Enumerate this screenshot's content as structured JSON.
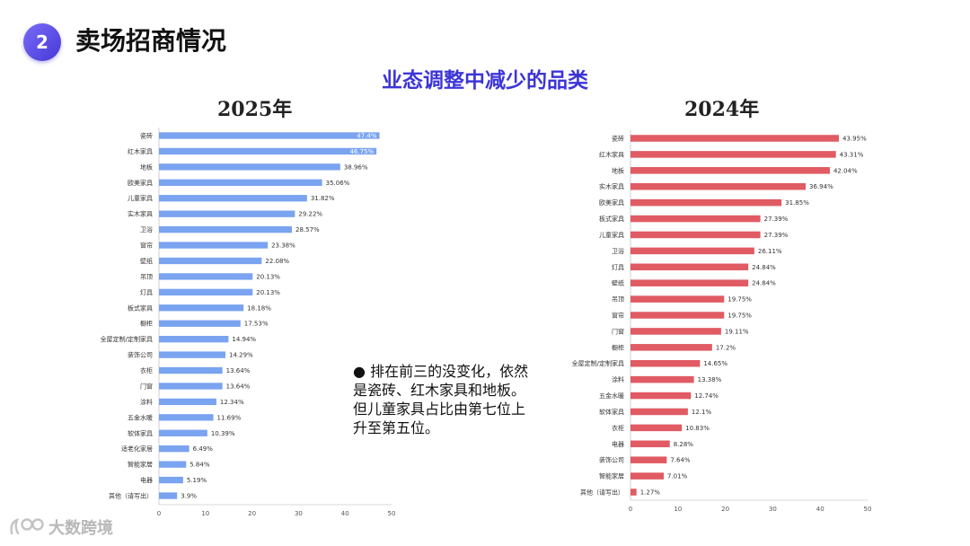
{
  "header": {
    "section_number": "2",
    "title": "卖场招商情况",
    "subtitle": "业态调整中减少的品类"
  },
  "note": {
    "bullet": "●",
    "text": "排在前三的没变化，依然是瓷砖、红木家具和地板。但儿童家具占比由第七位上升至第五位。"
  },
  "logo": {
    "text": "大数跨境",
    "icon": "logo-icon"
  },
  "colors": {
    "left_bar": "#7aa3f0",
    "right_bar": "#e05b63",
    "subtitle": "#3d35d6"
  },
  "chart_data": [
    {
      "type": "bar",
      "orientation": "horizontal",
      "title": "2025年",
      "categories": [
        "瓷砖",
        "红木家具",
        "地板",
        "欧美家具",
        "儿童家具",
        "实木家具",
        "卫浴",
        "窗帘",
        "壁纸",
        "吊顶",
        "灯具",
        "板式家具",
        "橱柜",
        "全屋定制/定制家具",
        "装饰公司",
        "衣柜",
        "门窗",
        "涂料",
        "五金水暖",
        "软体家具",
        "适老化家居",
        "智能家居",
        "电器",
        "其他（请写出）"
      ],
      "values": [
        47.4,
        46.75,
        38.96,
        35.06,
        31.82,
        29.22,
        28.57,
        23.38,
        22.08,
        20.13,
        20.13,
        18.18,
        17.53,
        14.94,
        14.29,
        13.64,
        13.64,
        12.34,
        11.69,
        10.39,
        6.49,
        5.84,
        5.19,
        3.9
      ],
      "labels": [
        "47.4%",
        "46.75%",
        "38.96%",
        "35.06%",
        "31.82%",
        "29.22%",
        "28.57%",
        "23.38%",
        "22.08%",
        "20.13%",
        "20.13%",
        "18.18%",
        "17.53%",
        "14.94%",
        "14.29%",
        "13.64%",
        "13.64%",
        "12.34%",
        "11.69%",
        "10.39%",
        "6.49%",
        "5.84%",
        "5.19%",
        "3.9%"
      ],
      "xlim": [
        0,
        50
      ],
      "xticks": [
        "0",
        "10",
        "20",
        "30",
        "40",
        "50"
      ]
    },
    {
      "type": "bar",
      "orientation": "horizontal",
      "title": "2024年",
      "categories": [
        "瓷砖",
        "红木家具",
        "地板",
        "实木家具",
        "欧美家具",
        "板式家具",
        "儿童家具",
        "卫浴",
        "灯具",
        "壁纸",
        "吊顶",
        "窗帘",
        "门窗",
        "橱柜",
        "全屋定制/定制家具",
        "涂料",
        "五金水暖",
        "软体家具",
        "衣柜",
        "电器",
        "装饰公司",
        "智能家居",
        "其他（请写出）"
      ],
      "values": [
        43.95,
        43.31,
        42.04,
        36.94,
        31.85,
        27.39,
        27.39,
        26.11,
        24.84,
        24.84,
        19.75,
        19.75,
        19.11,
        17.2,
        14.65,
        13.38,
        12.74,
        12.1,
        10.83,
        8.28,
        7.64,
        7.01,
        1.27
      ],
      "labels": [
        "43.95%",
        "43.31%",
        "42.04%",
        "36.94%",
        "31.85%",
        "27.39%",
        "27.39%",
        "26.11%",
        "24.84%",
        "24.84%",
        "19.75%",
        "19.75%",
        "19.11%",
        "17.2%",
        "14.65%",
        "13.38%",
        "12.74%",
        "12.1%",
        "10.83%",
        "8.28%",
        "7.64%",
        "7.01%",
        "1.27%"
      ],
      "xlim": [
        0,
        50
      ],
      "xticks": [
        "0",
        "10",
        "20",
        "30",
        "40",
        "50"
      ]
    }
  ]
}
